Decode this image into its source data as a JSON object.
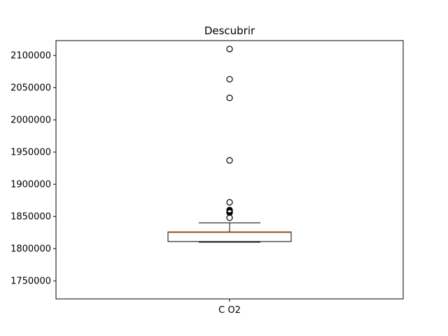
{
  "chart_data": {
    "type": "boxplot",
    "title": "Descubrir",
    "xlabel": "",
    "ylabel": "",
    "categories": [
      "C O2"
    ],
    "ylim": [
      1722000,
      2123000
    ],
    "yticks": [
      1750000,
      1800000,
      1850000,
      1900000,
      1950000,
      2000000,
      2050000,
      2100000
    ],
    "ytick_labels": [
      "1750000",
      "1800000",
      "1850000",
      "1900000",
      "1950000",
      "2000000",
      "2050000",
      "2100000"
    ],
    "grid": false,
    "boxes": [
      {
        "category": "C O2",
        "whisker_low": 1810000,
        "q1": 1811000,
        "median": 1825000,
        "q3": 1826000,
        "whisker_high": 1840000,
        "outliers": [
          1848000,
          1856000,
          1857000,
          1858000,
          1859000,
          1860000,
          1872000,
          1937000,
          2034000,
          2063000,
          2110000
        ]
      }
    ],
    "colors": {
      "box": "#000000",
      "median": "#ff7f0e",
      "outlier": "#000000"
    }
  }
}
